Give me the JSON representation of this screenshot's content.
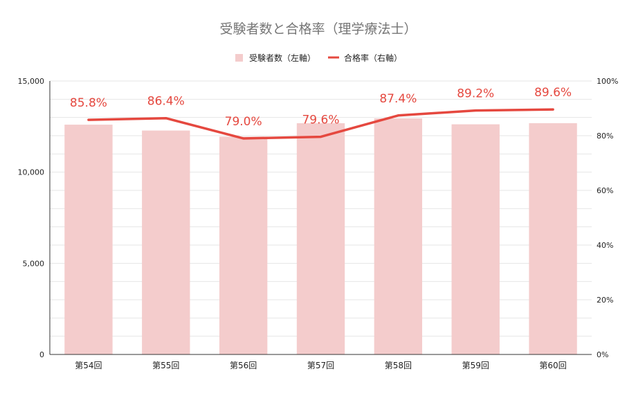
{
  "chart_data": {
    "type": "bar",
    "title": "受験者数と合格率（理学療法士）",
    "categories": [
      "第54回",
      "第55回",
      "第56回",
      "第57回",
      "第58回",
      "第59回",
      "第60回"
    ],
    "series": [
      {
        "name": "受験者数（左軸）",
        "type": "bar",
        "axis": "left",
        "color": "#f4cccc",
        "values": [
          12605,
          12283,
          11946,
          12685,
          12948,
          12624,
          12687
        ]
      },
      {
        "name": "合格率（右軸）",
        "type": "line",
        "axis": "right",
        "color": "#e5483f",
        "values": [
          85.8,
          86.4,
          79.0,
          79.6,
          87.4,
          89.2,
          89.6
        ],
        "data_labels": [
          "85.8%",
          "86.4%",
          "79.0%",
          "79.6%",
          "87.4%",
          "89.2%",
          "89.6%"
        ]
      }
    ],
    "left_axis": {
      "ylim": [
        0,
        15000
      ],
      "ticks": [
        0,
        5000,
        10000,
        15000
      ],
      "tick_labels": [
        "0",
        "5,000",
        "10,000",
        "15,000"
      ]
    },
    "right_axis": {
      "ylim": [
        0,
        100
      ],
      "ticks": [
        0,
        20,
        40,
        60,
        80,
        100
      ],
      "tick_labels": [
        "0%",
        "20%",
        "40%",
        "60%",
        "80%",
        "100%"
      ]
    },
    "legend_position": "top-center",
    "grid": true
  }
}
